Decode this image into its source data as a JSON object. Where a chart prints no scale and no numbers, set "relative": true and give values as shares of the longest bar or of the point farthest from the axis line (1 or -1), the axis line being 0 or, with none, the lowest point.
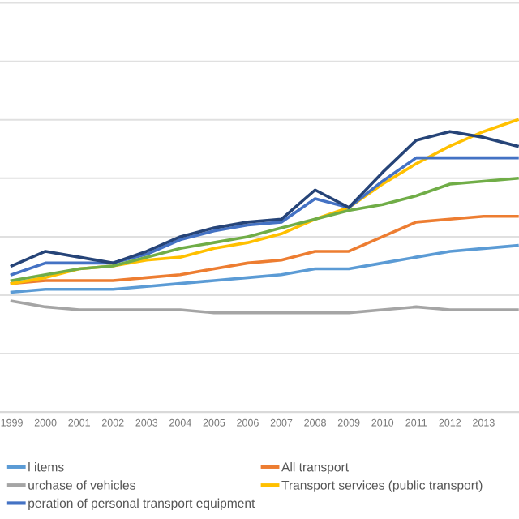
{
  "chart_data": {
    "type": "line",
    "relative": true,
    "grid": "y",
    "legend": "bottom",
    "marker": "none",
    "line_style": "solid",
    "categories": [
      "1999",
      "2000",
      "2001",
      "2002",
      "2003",
      "2004",
      "2005",
      "2006",
      "2007",
      "2008",
      "2009",
      "2010",
      "2011",
      "2012",
      "2013",
      null
    ],
    "series": [
      {
        "name": "l items",
        "color": "#5b9bd5",
        "values": [
          0.41,
          0.42,
          0.42,
          0.42,
          0.43,
          0.44,
          0.45,
          0.46,
          0.47,
          0.49,
          0.49,
          0.51,
          0.53,
          0.55,
          0.56,
          0.57
        ]
      },
      {
        "name": "All transport",
        "color": "#ed7d31",
        "values": [
          0.44,
          0.45,
          0.45,
          0.45,
          0.46,
          0.47,
          0.49,
          0.51,
          0.52,
          0.55,
          0.55,
          0.6,
          0.65,
          0.66,
          0.67,
          0.67
        ]
      },
      {
        "name": "urchase of vehicles",
        "color": "#a5a5a5",
        "values": [
          0.38,
          0.36,
          0.35,
          0.35,
          0.35,
          0.35,
          0.34,
          0.34,
          0.34,
          0.34,
          0.34,
          0.35,
          0.36,
          0.35,
          0.35,
          0.35
        ]
      },
      {
        "name": "Transport services (public transport)",
        "color": "#ffc000",
        "values": [
          0.44,
          0.46,
          0.49,
          0.5,
          0.52,
          0.53,
          0.56,
          0.58,
          0.61,
          0.66,
          0.7,
          0.78,
          0.85,
          0.91,
          0.96,
          1.0
        ]
      },
      {
        "name": "peration of personal transport equipment",
        "color": "#4472c4",
        "values": [
          0.47,
          0.51,
          0.51,
          0.51,
          0.54,
          0.59,
          0.62,
          0.64,
          0.65,
          0.73,
          0.7,
          0.79,
          0.87,
          0.87,
          0.87,
          0.87
        ]
      },
      {
        "color": "#70ad47",
        "values": [
          0.45,
          0.47,
          0.49,
          0.5,
          0.53,
          0.56,
          0.58,
          0.6,
          0.63,
          0.66,
          0.69,
          0.71,
          0.74,
          0.78,
          0.79,
          0.8
        ]
      },
      {
        "color": "#264478",
        "values": [
          0.5,
          0.55,
          0.53,
          0.51,
          0.55,
          0.6,
          0.63,
          0.65,
          0.66,
          0.76,
          0.7,
          0.82,
          0.93,
          0.96,
          0.94,
          0.91
        ]
      }
    ]
  }
}
